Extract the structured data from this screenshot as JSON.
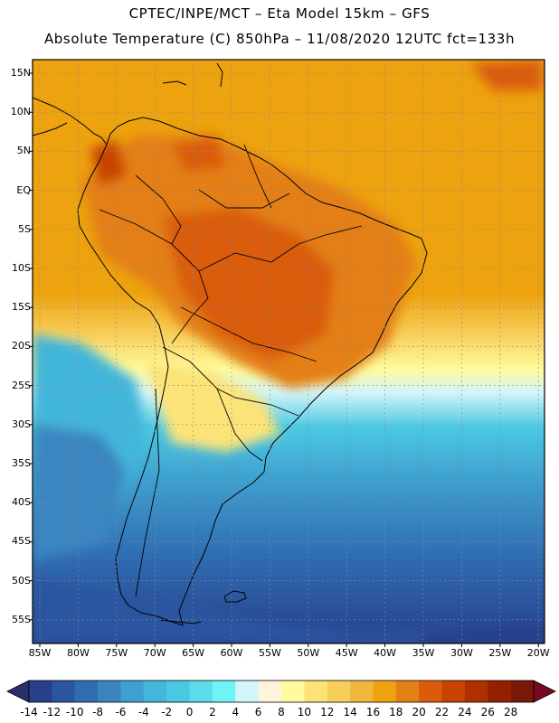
{
  "header": {
    "line1": "CPTEC/INPE/MCT –  Eta Model 15km – GFS",
    "line2": "Absolute Temperature (C) 850hPa – 11/08/2020 12UTC fct=133h"
  },
  "map": {
    "lat_labels": [
      "15N",
      "10N",
      "5N",
      "EQ",
      "5S",
      "10S",
      "15S",
      "20S",
      "25S",
      "30S",
      "35S",
      "40S",
      "45S",
      "50S",
      "55S"
    ],
    "lon_labels": [
      "85W",
      "80W",
      "75W",
      "70W",
      "65W",
      "60W",
      "55W",
      "50W",
      "45W",
      "40W",
      "35W",
      "30W",
      "25W",
      "20W"
    ]
  },
  "colorbar": {
    "labels": [
      "-14",
      "-12",
      "-10",
      "-8",
      "-6",
      "-4",
      "-2",
      "0",
      "2",
      "4",
      "6",
      "8",
      "10",
      "12",
      "14",
      "16",
      "18",
      "20",
      "22",
      "24",
      "26",
      "28"
    ],
    "colors": [
      "#283f8c",
      "#2a55a0",
      "#2f6db2",
      "#3a85c0",
      "#3f9fcf",
      "#43b6da",
      "#4ac9e2",
      "#5ddcec",
      "#6ff3f7",
      "#d2f5fa",
      "#fff4dc",
      "#fffb9c",
      "#fce378",
      "#f8ce5a",
      "#f0b73f",
      "#eda20f",
      "#e37f15",
      "#da5c0a",
      "#c84200",
      "#ae3000",
      "#952000",
      "#7a1808"
    ],
    "under_color": "#27306a",
    "over_color": "#7a0a22"
  }
}
